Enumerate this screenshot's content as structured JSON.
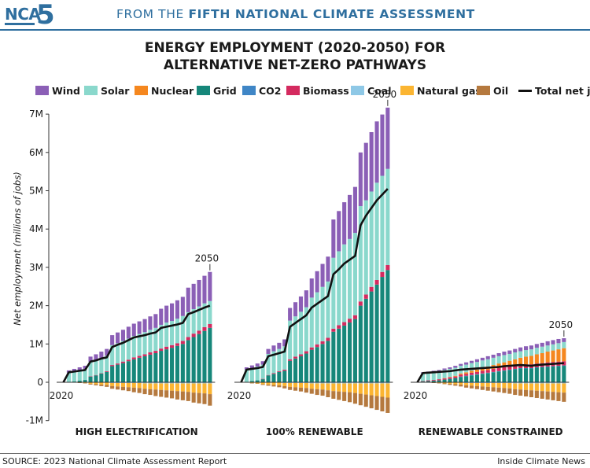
{
  "banner": {
    "logo_text": "NCA",
    "logo_number": "5",
    "prefix": "FROM THE ",
    "emphasis": "FIFTH NATIONAL CLIMATE ASSESSMENT"
  },
  "footer": {
    "source": "SOURCE: 2023 National Climate Assessment Report",
    "credit": "Inside Climate News"
  },
  "colors": {
    "brand": "#2f6f9f"
  },
  "chart_data": {
    "type": "bar",
    "title_line1": "ENERGY EMPLOYMENT (2020-2050) FOR",
    "title_line2": "ALTERNATIVE NET-ZERO PATHWAYS",
    "ylabel": "Net employment (millions of jobs)",
    "ylim": [
      -1,
      7
    ],
    "yticks": [
      -1,
      0,
      1,
      2,
      3,
      4,
      5,
      6,
      7
    ],
    "ytick_labels": [
      "-1M",
      "0",
      "1M",
      "2M",
      "3M",
      "4M",
      "5M",
      "6M",
      "7M"
    ],
    "legend_position": "top",
    "grid": false,
    "legend": [
      {
        "key": "wind",
        "label": "Wind",
        "color": "#8b5fb6"
      },
      {
        "key": "solar",
        "label": "Solar",
        "color": "#8ad8cc"
      },
      {
        "key": "nuclear",
        "label": "Nuclear",
        "color": "#f5871f"
      },
      {
        "key": "grid",
        "label": "Grid",
        "color": "#16877a"
      },
      {
        "key": "co2",
        "label": "CO2",
        "color": "#3f86c6"
      },
      {
        "key": "biomass",
        "label": "Biomass",
        "color": "#d42a5f"
      },
      {
        "key": "coal",
        "label": "Coal",
        "color": "#8ec8e6"
      },
      {
        "key": "gas",
        "label": "Natural gas",
        "color": "#fbb532"
      },
      {
        "key": "oil",
        "label": "Oil",
        "color": "#b5793e"
      },
      {
        "key": "total",
        "label": "Total net jobs",
        "color": "#111111"
      }
    ],
    "panels": [
      {
        "name": "HIGH ELECTRIFICATION",
        "start_label": "2020",
        "end_label": "2050",
        "total": [
          0,
          0.26,
          0.28,
          0.3,
          0.32,
          0.54,
          0.57,
          0.62,
          0.65,
          0.92,
          0.98,
          1.03,
          1.1,
          1.17,
          1.2,
          1.23,
          1.27,
          1.3,
          1.42,
          1.45,
          1.48,
          1.51,
          1.55,
          1.78,
          1.83,
          1.89,
          1.95,
          2.0
        ],
        "positive": {
          "grid": [
            0,
            0.0,
            0.02,
            0.04,
            0.06,
            0.15,
            0.18,
            0.23,
            0.27,
            0.42,
            0.46,
            0.5,
            0.55,
            0.6,
            0.64,
            0.68,
            0.72,
            0.76,
            0.82,
            0.86,
            0.9,
            0.95,
            1.0,
            1.1,
            1.18,
            1.26,
            1.34,
            1.42
          ],
          "biomass": [
            0,
            0.0,
            0.0,
            0.0,
            0.0,
            0.01,
            0.01,
            0.01,
            0.02,
            0.03,
            0.03,
            0.04,
            0.04,
            0.05,
            0.05,
            0.05,
            0.06,
            0.06,
            0.06,
            0.07,
            0.07,
            0.07,
            0.08,
            0.08,
            0.09,
            0.09,
            0.1,
            0.1
          ],
          "solar": [
            0,
            0.25,
            0.26,
            0.27,
            0.29,
            0.37,
            0.38,
            0.39,
            0.4,
            0.52,
            0.53,
            0.54,
            0.55,
            0.56,
            0.57,
            0.58,
            0.59,
            0.6,
            0.62,
            0.63,
            0.63,
            0.64,
            0.65,
            0.65,
            0.64,
            0.63,
            0.62,
            0.6
          ],
          "wind": [
            0,
            0.06,
            0.07,
            0.08,
            0.08,
            0.14,
            0.16,
            0.17,
            0.18,
            0.26,
            0.28,
            0.29,
            0.31,
            0.32,
            0.33,
            0.34,
            0.35,
            0.36,
            0.42,
            0.44,
            0.46,
            0.48,
            0.5,
            0.64,
            0.66,
            0.69,
            0.72,
            0.76
          ]
        },
        "negative": {
          "coal": [
            0,
            0.0,
            0.0,
            0.0,
            0.0,
            0.01,
            0.01,
            0.01,
            0.01,
            0.02,
            0.02,
            0.02,
            0.02,
            0.02,
            0.02,
            0.03,
            0.03,
            0.03,
            0.03,
            0.03,
            0.03,
            0.03,
            0.03,
            0.03,
            0.03,
            0.03,
            0.03,
            0.03
          ],
          "gas": [
            0,
            0.0,
            0.01,
            0.01,
            0.02,
            0.03,
            0.04,
            0.05,
            0.06,
            0.08,
            0.09,
            0.1,
            0.11,
            0.12,
            0.13,
            0.14,
            0.15,
            0.16,
            0.17,
            0.18,
            0.19,
            0.2,
            0.21,
            0.22,
            0.24,
            0.25,
            0.26,
            0.28
          ],
          "oil": [
            0,
            0.0,
            0.0,
            0.01,
            0.01,
            0.02,
            0.03,
            0.04,
            0.05,
            0.07,
            0.08,
            0.09,
            0.1,
            0.12,
            0.13,
            0.14,
            0.15,
            0.17,
            0.18,
            0.19,
            0.2,
            0.22,
            0.23,
            0.24,
            0.26,
            0.27,
            0.28,
            0.3
          ]
        }
      },
      {
        "name": "100% RENEWABLE",
        "start_label": "2020",
        "end_label": "2050",
        "total": [
          0,
          0.33,
          0.35,
          0.37,
          0.4,
          0.68,
          0.72,
          0.76,
          0.8,
          1.45,
          1.55,
          1.65,
          1.75,
          1.95,
          2.05,
          2.15,
          2.25,
          2.82,
          2.95,
          3.1,
          3.2,
          3.3,
          4.1,
          4.35,
          4.55,
          4.75,
          4.9,
          5.05
        ],
        "positive": {
          "grid": [
            0,
            0.0,
            0.03,
            0.05,
            0.08,
            0.18,
            0.22,
            0.27,
            0.3,
            0.56,
            0.62,
            0.68,
            0.75,
            0.85,
            0.92,
            1.0,
            1.08,
            1.32,
            1.4,
            1.48,
            1.56,
            1.65,
            2.0,
            2.18,
            2.37,
            2.55,
            2.75,
            2.93
          ],
          "biomass": [
            0,
            0.0,
            0.0,
            0.0,
            0.01,
            0.01,
            0.02,
            0.02,
            0.03,
            0.04,
            0.05,
            0.05,
            0.06,
            0.06,
            0.07,
            0.07,
            0.08,
            0.08,
            0.09,
            0.09,
            0.1,
            0.1,
            0.11,
            0.11,
            0.12,
            0.12,
            0.13,
            0.13
          ],
          "solar": [
            0,
            0.33,
            0.34,
            0.36,
            0.37,
            0.55,
            0.57,
            0.58,
            0.61,
            1.01,
            1.05,
            1.11,
            1.15,
            1.3,
            1.36,
            1.42,
            1.47,
            1.85,
            1.93,
            2.03,
            2.08,
            2.15,
            2.49,
            2.46,
            2.49,
            2.54,
            2.51,
            2.51
          ],
          "wind": [
            0,
            0.06,
            0.07,
            0.08,
            0.09,
            0.13,
            0.15,
            0.16,
            0.18,
            0.33,
            0.37,
            0.4,
            0.44,
            0.5,
            0.55,
            0.6,
            0.65,
            1.0,
            1.05,
            1.1,
            1.15,
            1.2,
            1.4,
            1.5,
            1.55,
            1.6,
            1.6,
            1.6
          ]
        },
        "negative": {
          "coal": [
            0,
            0.0,
            0.0,
            0.0,
            0.01,
            0.01,
            0.01,
            0.01,
            0.02,
            0.02,
            0.02,
            0.02,
            0.02,
            0.03,
            0.03,
            0.03,
            0.03,
            0.03,
            0.03,
            0.03,
            0.03,
            0.03,
            0.03,
            0.03,
            0.03,
            0.03,
            0.03,
            0.03
          ],
          "gas": [
            0,
            0.0,
            0.02,
            0.03,
            0.04,
            0.05,
            0.06,
            0.07,
            0.08,
            0.1,
            0.11,
            0.12,
            0.13,
            0.14,
            0.15,
            0.16,
            0.18,
            0.2,
            0.21,
            0.22,
            0.23,
            0.25,
            0.27,
            0.29,
            0.31,
            0.33,
            0.35,
            0.37
          ],
          "oil": [
            0,
            0.0,
            0.01,
            0.01,
            0.02,
            0.03,
            0.04,
            0.05,
            0.06,
            0.08,
            0.09,
            0.1,
            0.12,
            0.13,
            0.15,
            0.16,
            0.18,
            0.2,
            0.22,
            0.24,
            0.26,
            0.28,
            0.3,
            0.32,
            0.34,
            0.36,
            0.38,
            0.4
          ]
        }
      },
      {
        "name": "RENEWABLE CONSTRAINED",
        "start_label": "2020",
        "end_label": "2050",
        "total": [
          0,
          0.24,
          0.25,
          0.26,
          0.27,
          0.28,
          0.29,
          0.31,
          0.33,
          0.34,
          0.35,
          0.36,
          0.37,
          0.38,
          0.39,
          0.4,
          0.42,
          0.43,
          0.44,
          0.45,
          0.44,
          0.43,
          0.45,
          0.46,
          0.47,
          0.48,
          0.49,
          0.5
        ],
        "positive": {
          "grid": [
            0,
            0.02,
            0.03,
            0.04,
            0.05,
            0.07,
            0.09,
            0.11,
            0.14,
            0.16,
            0.18,
            0.2,
            0.22,
            0.24,
            0.26,
            0.28,
            0.3,
            0.32,
            0.34,
            0.36,
            0.36,
            0.36,
            0.38,
            0.39,
            0.4,
            0.41,
            0.42,
            0.43
          ],
          "co2": [
            0,
            0.0,
            0.0,
            0.0,
            0.0,
            0.0,
            0.0,
            0.0,
            0.01,
            0.01,
            0.01,
            0.01,
            0.01,
            0.01,
            0.01,
            0.01,
            0.01,
            0.01,
            0.01,
            0.01,
            0.01,
            0.01,
            0.01,
            0.01,
            0.01,
            0.01,
            0.01,
            0.01
          ],
          "biomass": [
            0,
            0.01,
            0.02,
            0.02,
            0.03,
            0.03,
            0.04,
            0.04,
            0.05,
            0.05,
            0.06,
            0.06,
            0.07,
            0.07,
            0.08,
            0.08,
            0.08,
            0.09,
            0.09,
            0.09,
            0.1,
            0.1,
            0.1,
            0.1,
            0.11,
            0.11,
            0.11,
            0.11
          ],
          "nuclear": [
            0,
            0.0,
            0.0,
            0.0,
            0.0,
            0.01,
            0.01,
            0.02,
            0.03,
            0.04,
            0.05,
            0.06,
            0.08,
            0.09,
            0.1,
            0.12,
            0.13,
            0.14,
            0.16,
            0.18,
            0.2,
            0.22,
            0.24,
            0.26,
            0.28,
            0.3,
            0.32,
            0.34
          ],
          "solar": [
            0,
            0.21,
            0.21,
            0.21,
            0.21,
            0.21,
            0.21,
            0.21,
            0.2,
            0.2,
            0.2,
            0.2,
            0.19,
            0.19,
            0.19,
            0.19,
            0.19,
            0.18,
            0.18,
            0.17,
            0.17,
            0.17,
            0.17,
            0.17,
            0.16,
            0.16,
            0.16,
            0.16
          ],
          "wind": [
            0,
            0.02,
            0.02,
            0.03,
            0.03,
            0.04,
            0.04,
            0.05,
            0.05,
            0.06,
            0.06,
            0.07,
            0.07,
            0.08,
            0.08,
            0.08,
            0.09,
            0.09,
            0.09,
            0.1,
            0.1,
            0.1,
            0.1,
            0.1,
            0.11,
            0.11,
            0.11,
            0.1
          ]
        },
        "negative": {
          "coal": [
            0,
            0.0,
            0.0,
            0.0,
            0.01,
            0.01,
            0.01,
            0.01,
            0.01,
            0.02,
            0.02,
            0.02,
            0.02,
            0.02,
            0.02,
            0.02,
            0.02,
            0.02,
            0.03,
            0.03,
            0.03,
            0.03,
            0.03,
            0.03,
            0.03,
            0.03,
            0.03,
            0.03
          ],
          "gas": [
            0,
            0.0,
            0.01,
            0.01,
            0.01,
            0.02,
            0.03,
            0.04,
            0.05,
            0.06,
            0.07,
            0.08,
            0.09,
            0.1,
            0.11,
            0.12,
            0.13,
            0.14,
            0.15,
            0.16,
            0.17,
            0.18,
            0.19,
            0.2,
            0.21,
            0.22,
            0.23,
            0.24
          ],
          "oil": [
            0,
            0.0,
            0.0,
            0.01,
            0.01,
            0.02,
            0.03,
            0.04,
            0.05,
            0.06,
            0.07,
            0.08,
            0.09,
            0.1,
            0.11,
            0.12,
            0.13,
            0.14,
            0.15,
            0.16,
            0.17,
            0.18,
            0.19,
            0.2,
            0.21,
            0.22,
            0.23,
            0.24
          ]
        }
      }
    ]
  }
}
